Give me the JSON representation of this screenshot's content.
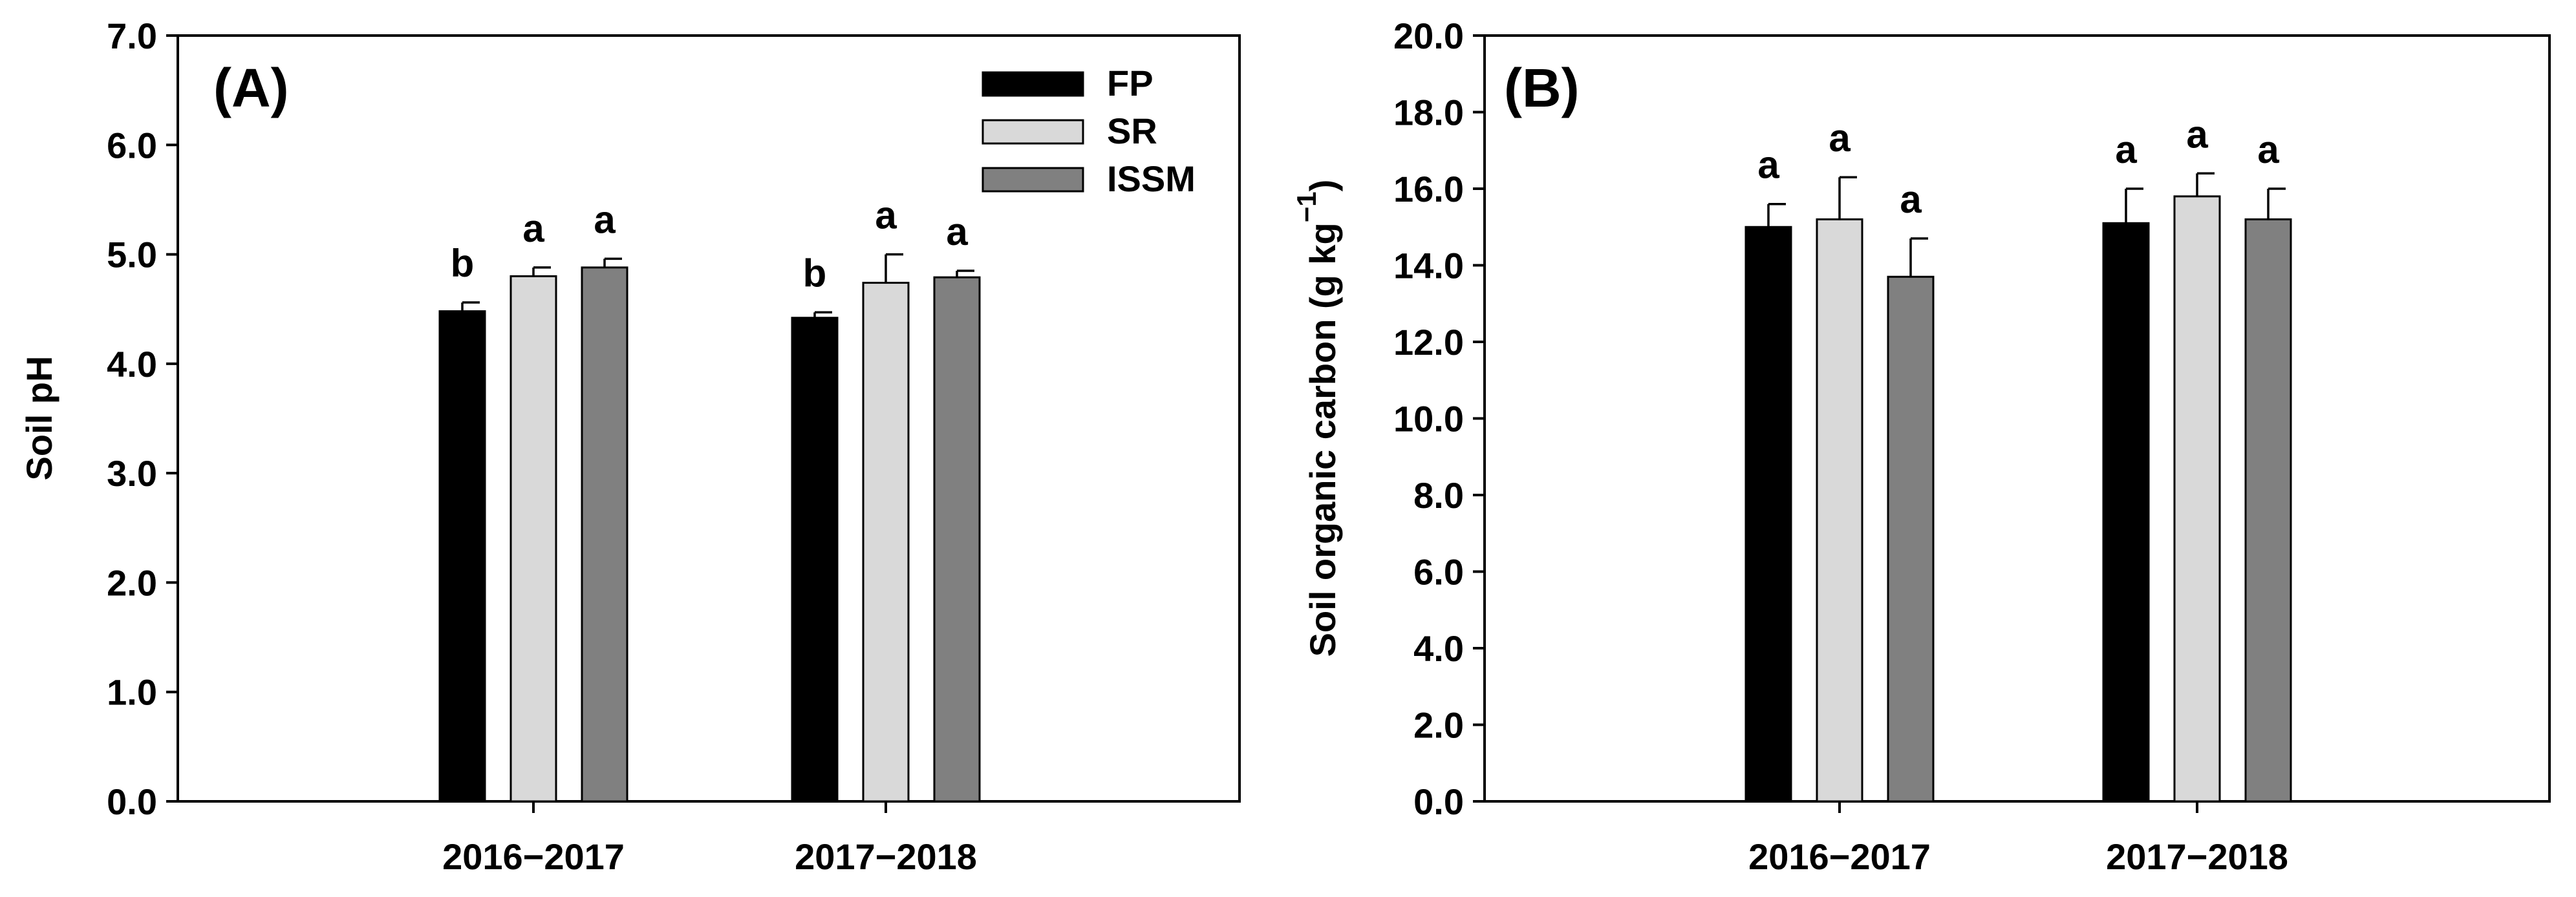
{
  "colors": {
    "FP": "#000000",
    "SR": "#d9d9d9",
    "ISSM": "#808080"
  },
  "chart_data": [
    {
      "type": "bar",
      "panel_label": "(A)",
      "ylabel": "Soil pH",
      "xlabel": "",
      "categories": [
        "2016−2017",
        "2017−2018"
      ],
      "ylim": [
        0,
        7
      ],
      "yticks": [
        "0.0",
        "1.0",
        "2.0",
        "3.0",
        "4.0",
        "5.0",
        "6.0",
        "7.0"
      ],
      "legend": {
        "placement": "top-right",
        "entries": [
          "FP",
          "SR",
          "ISSM"
        ]
      },
      "series": [
        {
          "name": "FP",
          "values": [
            4.48,
            4.42
          ],
          "errors": [
            0.08,
            0.05
          ],
          "letters": [
            "b",
            "b"
          ]
        },
        {
          "name": "SR",
          "values": [
            4.8,
            4.74
          ],
          "errors": [
            0.08,
            0.26
          ],
          "letters": [
            "a",
            "a"
          ]
        },
        {
          "name": "ISSM",
          "values": [
            4.88,
            4.79
          ],
          "errors": [
            0.08,
            0.06
          ],
          "letters": [
            "a",
            "a"
          ]
        }
      ]
    },
    {
      "type": "bar",
      "panel_label": "(B)",
      "ylabel_main": "Soil organic carbon (g kg",
      "ylabel_sup": "−1",
      "ylabel_end": ")",
      "xlabel": "",
      "categories": [
        "2016−2017",
        "2017−2018"
      ],
      "ylim": [
        0,
        20
      ],
      "yticks": [
        "0.0",
        "2.0",
        "4.0",
        "6.0",
        "8.0",
        "10.0",
        "12.0",
        "14.0",
        "16.0",
        "18.0",
        "20.0"
      ],
      "legend": null,
      "series": [
        {
          "name": "FP",
          "values": [
            15.0,
            15.1
          ],
          "errors": [
            0.6,
            0.9
          ],
          "letters": [
            "a",
            "a"
          ]
        },
        {
          "name": "SR",
          "values": [
            15.2,
            15.8
          ],
          "errors": [
            1.1,
            0.6
          ],
          "letters": [
            "a",
            "a"
          ]
        },
        {
          "name": "ISSM",
          "values": [
            13.7,
            15.2
          ],
          "errors": [
            1.0,
            0.8
          ],
          "letters": [
            "a",
            "a"
          ]
        }
      ]
    }
  ]
}
